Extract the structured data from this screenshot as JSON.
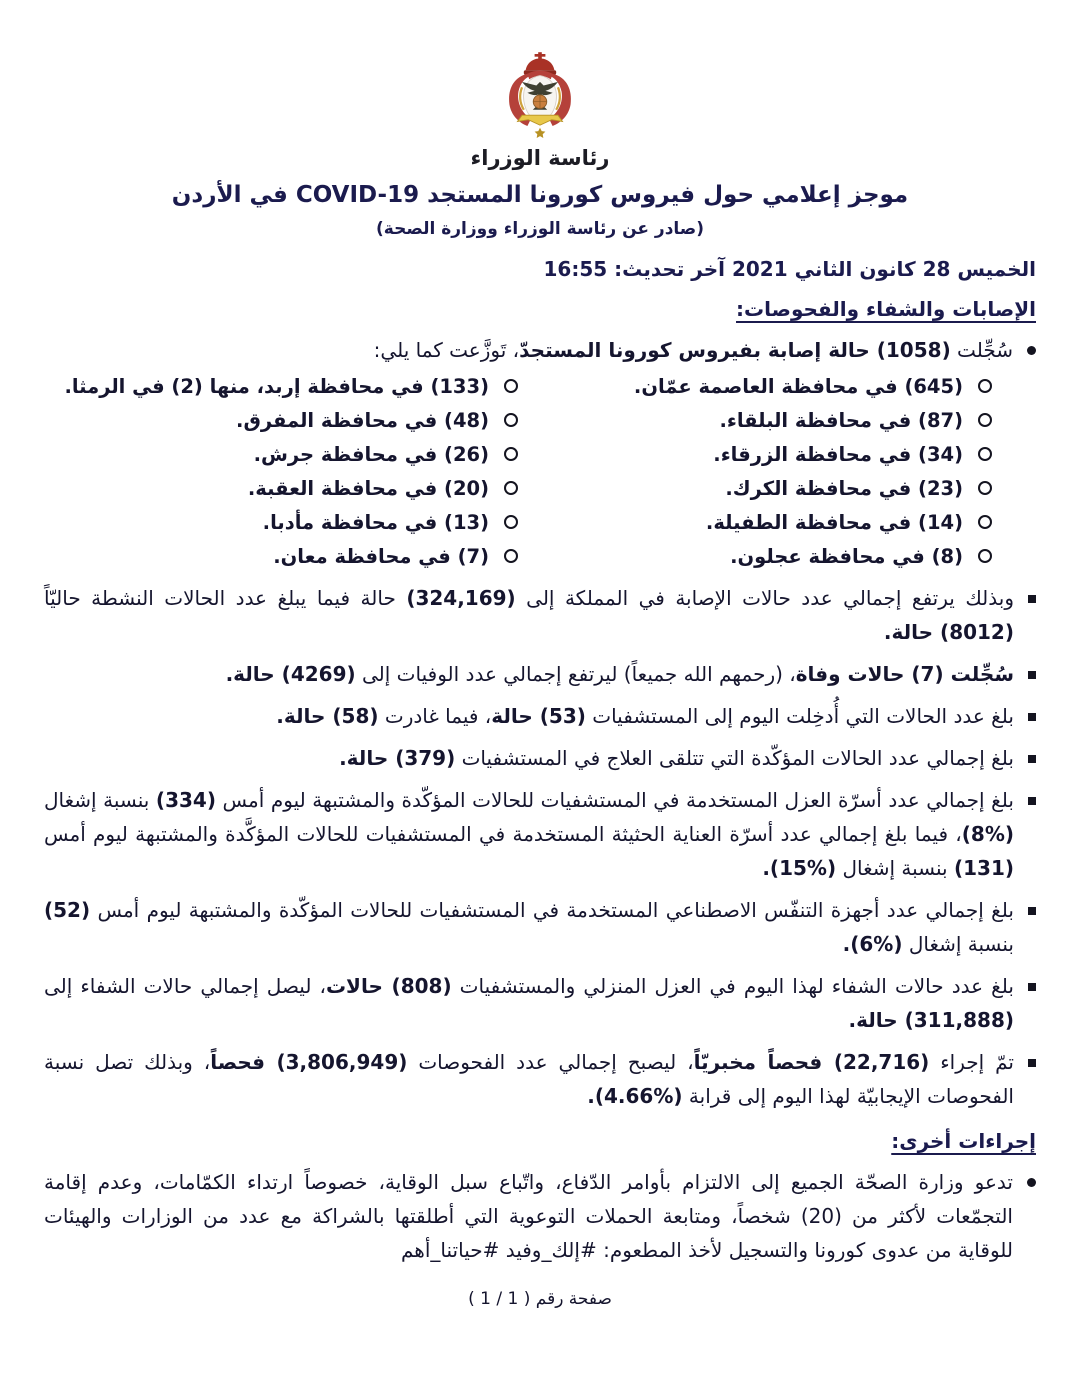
{
  "colors": {
    "title": "#1b1b4e",
    "body": "#15152e",
    "crest_red": "#a93226",
    "crest_red_dark": "#8e2a1f",
    "crest_gold": "#cfa23c",
    "crest_banner": "#e8c84a",
    "crest_globe": "#c97f3e",
    "crest_eagle": "#3f4032"
  },
  "masthead": {
    "org_caption": "رئاسة الوزراء"
  },
  "header": {
    "title": "موجز إعلامي حول فيروس كورونا المستجد COVID-19 في الأردن",
    "subtitle": "(صادر عن رئاسة الوزراء ووزارة الصحة)",
    "dateline": "الخميس 28 كانون الثاني 2021 آخر تحديث: 16:55"
  },
  "sections": {
    "cases": {
      "heading": "الإصابات والشفاء والفحوصات:",
      "intro_segments": [
        {
          "t": "سُجِّلت ",
          "b": false
        },
        {
          "t": "(1058) حالة إصابة بفيروس كورونا المستجدّ",
          "b": true
        },
        {
          "t": "، تَوزَّعت كما يلي:",
          "b": false
        }
      ],
      "governorates_right": [
        "(645) في محافظة العاصمة عمّان.",
        "(87) في محافظة البلقاء.",
        "(34) في محافظة الزرقاء.",
        "(23) في محافظة الكرك.",
        "(14) في محافظة الطفيلة.",
        "(8) في محافظة عجلون."
      ],
      "governorates_left": [
        "(133) في محافظة إربد، منها (2) في الرمثا.",
        "(48) في محافظة المفرق.",
        "(26) في محافظة جرش.",
        "(20) في محافظة العقبة.",
        "(13) في محافظة مأدبا.",
        "(7) في محافظة معان."
      ],
      "stats": [
        {
          "segments": [
            {
              "t": "وبذلك يرتفع إجمالي عدد حالات الإصابة في المملكة إلى ",
              "b": false
            },
            {
              "t": "(324,169)",
              "b": true
            },
            {
              "t": " حالة فيما يبلغ عدد الحالات النشطة حاليّاً ",
              "b": false
            },
            {
              "t": "(8012) حالة.",
              "b": true
            }
          ]
        },
        {
          "segments": [
            {
              "t": "سُجِّلت (7) حالات وفاة",
              "b": true
            },
            {
              "t": "، (رحمهم الله جميعاً) ليرتفع إجمالي عدد الوفيات إلى ",
              "b": false
            },
            {
              "t": "(4269) حالة.",
              "b": true
            }
          ]
        },
        {
          "segments": [
            {
              "t": "بلغ عدد الحالات التي أُدخِلت اليوم إلى المستشفيات ",
              "b": false
            },
            {
              "t": "(53) حالة",
              "b": true
            },
            {
              "t": "، فيما غادرت ",
              "b": false
            },
            {
              "t": "(58) حالة.",
              "b": true
            }
          ]
        },
        {
          "segments": [
            {
              "t": "بلغ إجمالي عدد الحالات المؤكّدة التي تتلقى العلاج في المستشفيات ",
              "b": false
            },
            {
              "t": "(379) حالة.",
              "b": true
            }
          ]
        },
        {
          "segments": [
            {
              "t": "بلغ إجمالي عدد أسرّة العزل المستخدمة في المستشفيات للحالات المؤكّدة والمشتبهة ليوم أمس ",
              "b": false
            },
            {
              "t": "(334)",
              "b": true
            },
            {
              "t": " بنسبة إشغال ",
              "b": false
            },
            {
              "t": "(%8)",
              "b": true
            },
            {
              "t": "، فيما بلغ إجمالي عدد أسرّة العناية الحثيثة المستخدمة في المستشفيات للحالات المؤكَّدة والمشتبهة ليوم أمس ",
              "b": false
            },
            {
              "t": "(131)",
              "b": true
            },
            {
              "t": " بنسبة إشغال ",
              "b": false
            },
            {
              "t": "(%15).",
              "b": true
            }
          ]
        },
        {
          "segments": [
            {
              "t": "بلغ إجمالي عدد أجهزة التنفّس الاصطناعي المستخدمة في المستشفيات للحالات المؤكّدة والمشتبهة ليوم أمس ",
              "b": false
            },
            {
              "t": "(52)",
              "b": true
            },
            {
              "t": " بنسبة إشغال ",
              "b": false
            },
            {
              "t": "(%6).",
              "b": true
            }
          ]
        },
        {
          "segments": [
            {
              "t": "بلغ عدد حالات الشفاء لهذا اليوم في العزل المنزلي والمستشفيات ",
              "b": false
            },
            {
              "t": "(808) حالات",
              "b": true
            },
            {
              "t": "، ليصل إجمالي حالات الشفاء إلى ",
              "b": false
            },
            {
              "t": "(311,888) حالة.",
              "b": true
            }
          ]
        },
        {
          "segments": [
            {
              "t": "تمّ إجراء ",
              "b": false
            },
            {
              "t": "(22,716) فحصاً مخبريّاً",
              "b": true
            },
            {
              "t": "، ليصبح إجمالي عدد الفحوصات ",
              "b": false
            },
            {
              "t": "(3,806,949) فحصاً",
              "b": true
            },
            {
              "t": "، وبذلك تصل نسبة الفحوصات الإيجابيّة لهذا اليوم إلى قرابة ",
              "b": false
            },
            {
              "t": "(%4.66).",
              "b": true
            }
          ]
        }
      ]
    },
    "measures": {
      "heading": "إجراءات أخرى:",
      "items": [
        {
          "segments": [
            {
              "t": "تدعو وزارة الصحّة الجميع إلى الالتزام بأوامر الدّفاع، واتّباع سبل الوقاية، خصوصاً ارتداء الكمّامات، وعدم إقامة التجمّعات لأكثر من (20) شخصاً، ومتابعة الحملات التوعوية التي أطلقتها بالشراكة مع عدد من الوزارات والهيئات للوقاية من عدوى كورونا والتسجيل لأخذ المطعوم: #إلك_وفيد #حياتنا_أهم",
              "b": false
            }
          ]
        }
      ]
    }
  },
  "footer": {
    "page_label": "صفحة رقم ( 1 / 1 )"
  }
}
